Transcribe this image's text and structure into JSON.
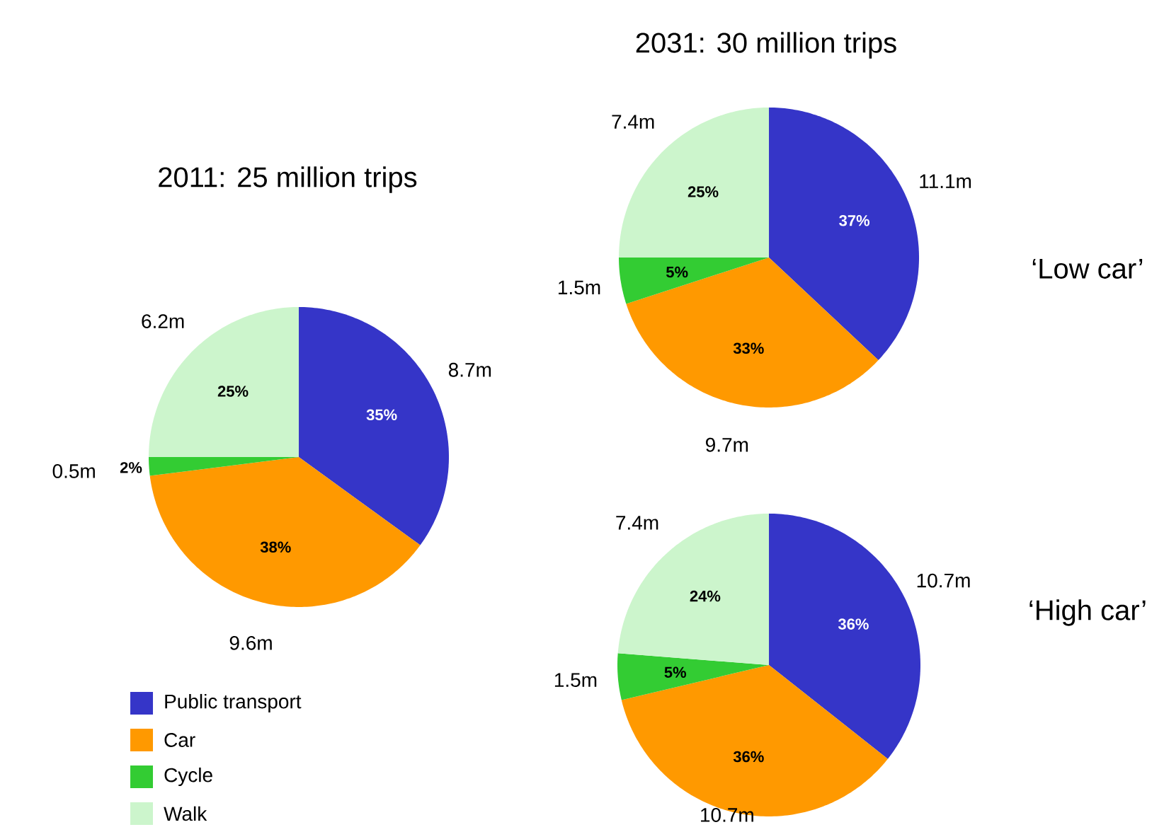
{
  "chart_data": [
    {
      "type": "pie",
      "title": "2011: 25 million trips",
      "categories": [
        "Public transport",
        "Car",
        "Cycle",
        "Walk"
      ],
      "values": [
        35,
        38,
        2,
        25
      ],
      "colors": [
        "#3535c8",
        "#ff9900",
        "#33cc33",
        "#ccf5cc"
      ],
      "value_labels": [
        "35%",
        "38%",
        "2%",
        "25%"
      ],
      "annotations": [
        "8.7m",
        "9.6m",
        "0.5m",
        "6.2m"
      ],
      "legend": "bottom left"
    },
    {
      "type": "pie",
      "title": "2031: 30 million trips",
      "categories": [
        null,
        null,
        null,
        null
      ],
      "values": [
        37,
        33,
        5,
        25
      ],
      "colors": [
        "#3535c8",
        "#ff9900",
        "#33cc33",
        "#ccf5cc"
      ],
      "value_labels": [
        "37%",
        "33%",
        "5%",
        "25%"
      ],
      "annotations": [
        "11.1m",
        "9.7m",
        "1.5m",
        "7.4m",
        "‘Low car’"
      ]
    },
    {
      "type": "pie",
      "categories": [
        null,
        null,
        null,
        null
      ],
      "values": [
        36,
        36,
        5,
        24
      ],
      "colors": [
        "#3535c8",
        "#ff9900",
        "#33cc33",
        "#ccf5cc"
      ],
      "value_labels": [
        "36%",
        "36%",
        "5%",
        "24%"
      ],
      "annotations": [
        "10.7m",
        "10.7m",
        "1.5m",
        "7.4m",
        "‘High car’"
      ]
    }
  ]
}
